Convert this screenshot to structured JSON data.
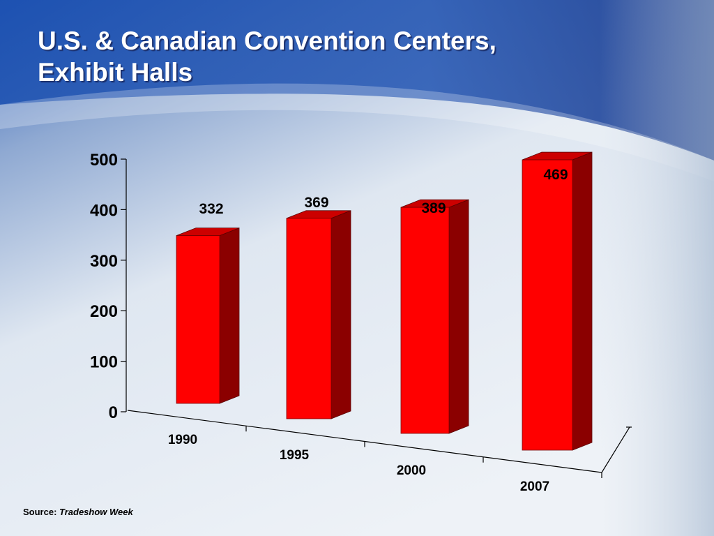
{
  "slide": {
    "title_line1": "U.S. & Canadian Convention Centers,",
    "title_line2": "Exhibit Halls",
    "source_label": "Source: ",
    "source_name": "Tradeshow Week"
  },
  "colors": {
    "bar_front": "#ff0000",
    "bar_side": "#8b0000",
    "bar_top": "#cc0000",
    "background_dark": "#1f4aa8",
    "background_light": "#e9eef5"
  },
  "chart_data": {
    "type": "bar",
    "style": "3d-perspective",
    "categories": [
      "1990",
      "1995",
      "2000",
      "2007"
    ],
    "series": [
      {
        "values": [
          332,
          369,
          389,
          469
        ]
      }
    ],
    "data_labels": [
      "332",
      "369",
      "389",
      "469"
    ],
    "yticks": [
      0,
      100,
      200,
      300,
      400,
      500
    ],
    "ylim": [
      0,
      500
    ],
    "xlabel": "",
    "ylabel": "",
    "grid": false,
    "legend": "none"
  }
}
